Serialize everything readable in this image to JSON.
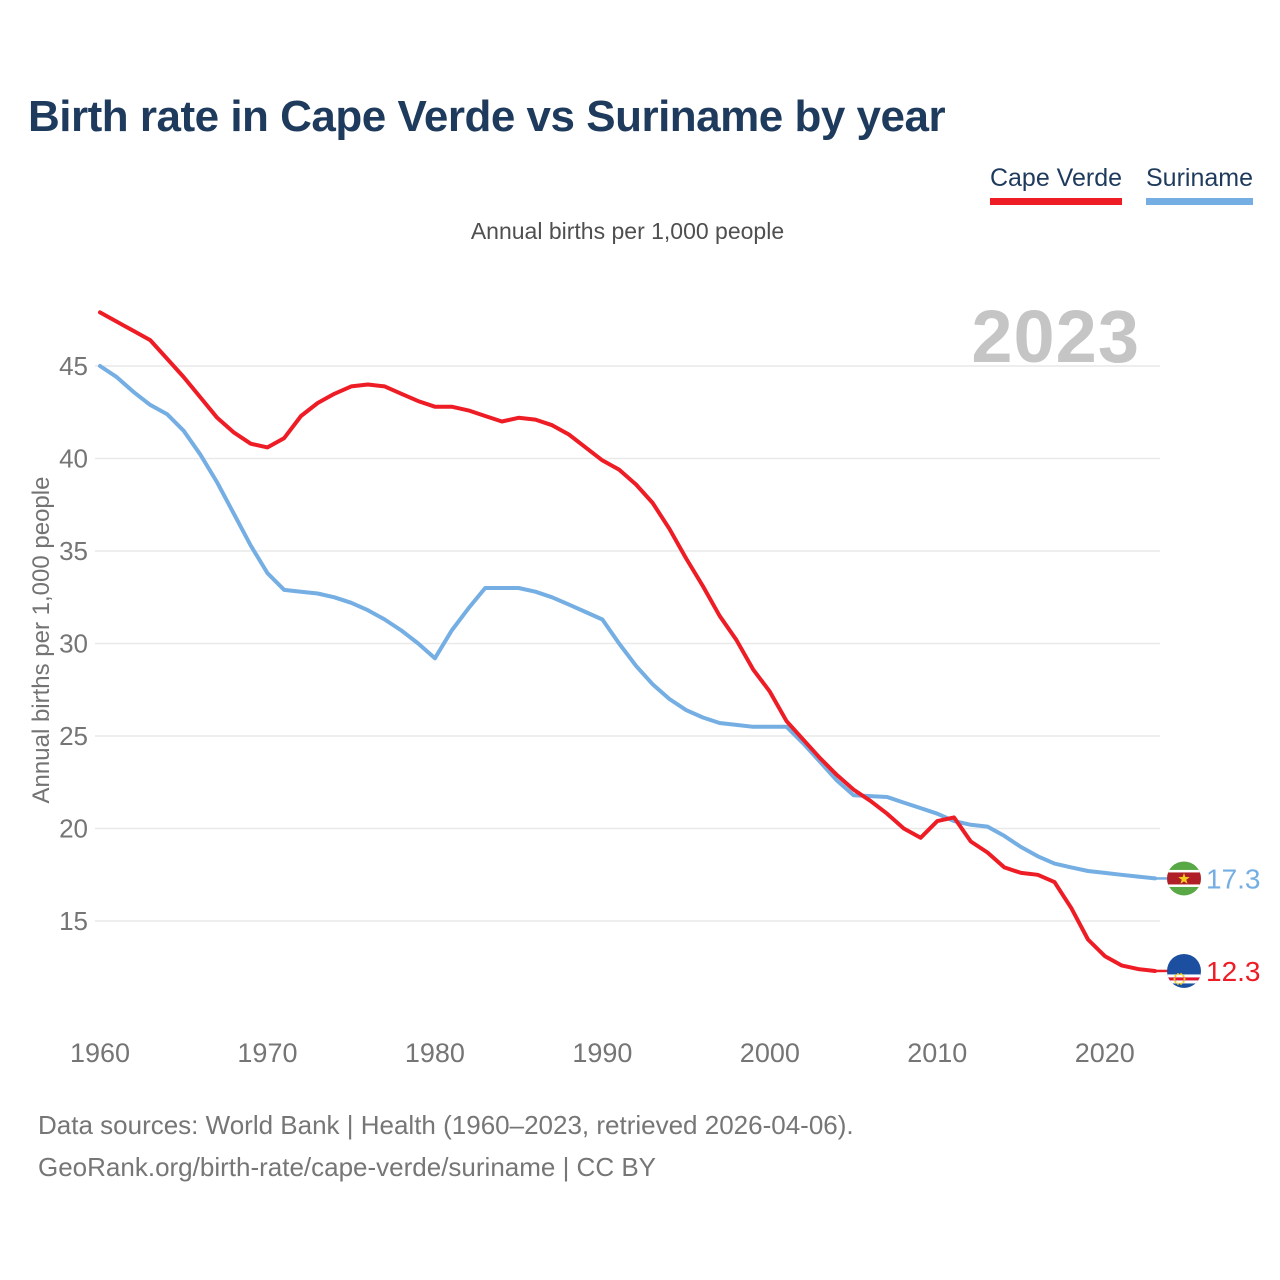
{
  "header": {
    "title": "Birth rate in Cape Verde vs Suriname by year"
  },
  "legend": {
    "items": [
      {
        "label": "Cape Verde",
        "color": "#ee1c25"
      },
      {
        "label": "Suriname",
        "color": "#74aee3"
      }
    ]
  },
  "subtitle": "Annual births per 1,000 people",
  "watermark": "2023",
  "y_axis_title": "Annual births per 1,000 people",
  "chart_data": {
    "type": "line",
    "title": "Birth rate in Cape Verde vs Suriname by year",
    "ylabel": "Annual births per 1,000 people",
    "grid": "horizontal",
    "legend_position": "top-right",
    "ylim": [
      11,
      48.5
    ],
    "y_ticks": [
      15,
      20,
      25,
      30,
      35,
      40,
      45
    ],
    "x_ticks": [
      1960,
      1970,
      1980,
      1990,
      2000,
      2010,
      2020
    ],
    "x": [
      1960,
      1961,
      1962,
      1963,
      1964,
      1965,
      1966,
      1967,
      1968,
      1969,
      1970,
      1971,
      1972,
      1973,
      1974,
      1975,
      1976,
      1977,
      1978,
      1979,
      1980,
      1981,
      1982,
      1983,
      1984,
      1985,
      1986,
      1987,
      1988,
      1989,
      1990,
      1991,
      1992,
      1993,
      1994,
      1995,
      1996,
      1997,
      1998,
      1999,
      2000,
      2001,
      2002,
      2003,
      2004,
      2005,
      2006,
      2007,
      2008,
      2009,
      2010,
      2011,
      2012,
      2013,
      2014,
      2015,
      2016,
      2017,
      2018,
      2019,
      2020,
      2021,
      2022,
      2023
    ],
    "series": [
      {
        "name": "Cape Verde",
        "color": "#ee1c25",
        "flag": "cape-verde",
        "end_label": "12.3",
        "values": [
          47.9,
          47.4,
          46.9,
          46.4,
          45.4,
          44.4,
          43.3,
          42.2,
          41.4,
          40.8,
          40.6,
          41.1,
          42.3,
          43.0,
          43.5,
          43.9,
          44.0,
          43.9,
          43.5,
          43.1,
          42.8,
          42.8,
          42.6,
          42.3,
          42.0,
          42.2,
          42.1,
          41.8,
          41.3,
          40.6,
          39.9,
          39.4,
          38.6,
          37.6,
          36.2,
          34.6,
          33.1,
          31.5,
          30.2,
          28.6,
          27.4,
          25.8,
          24.8,
          23.8,
          22.9,
          22.1,
          21.5,
          20.8,
          20.0,
          19.5,
          20.4,
          20.6,
          19.3,
          18.7,
          17.9,
          17.6,
          17.5,
          17.1,
          15.7,
          14.0,
          13.1,
          12.6,
          12.4,
          12.3
        ]
      },
      {
        "name": "Suriname",
        "color": "#74aee3",
        "flag": "suriname",
        "end_label": "17.3",
        "values": [
          45.0,
          44.4,
          43.6,
          42.9,
          42.4,
          41.5,
          40.2,
          38.7,
          37.0,
          35.3,
          33.8,
          32.9,
          32.8,
          32.7,
          32.5,
          32.2,
          31.8,
          31.3,
          30.7,
          30.0,
          29.2,
          30.7,
          31.9,
          33.0,
          33.0,
          33.0,
          32.8,
          32.5,
          32.1,
          31.7,
          31.3,
          30.0,
          28.8,
          27.8,
          27.0,
          26.4,
          26.0,
          25.7,
          25.6,
          25.5,
          25.5,
          25.5,
          24.6,
          23.6,
          22.6,
          21.8,
          21.75,
          21.7,
          21.4,
          21.1,
          20.8,
          20.4,
          20.2,
          20.1,
          19.6,
          19.0,
          18.5,
          18.1,
          17.9,
          17.7,
          17.6,
          17.5,
          17.4,
          17.3
        ]
      }
    ]
  },
  "footer": {
    "line1": "Data sources: World Bank | Health (1960–2023, retrieved 2026-04-06).",
    "line2": "GeoRank.org/birth-rate/cape-verde/suriname | CC BY"
  }
}
